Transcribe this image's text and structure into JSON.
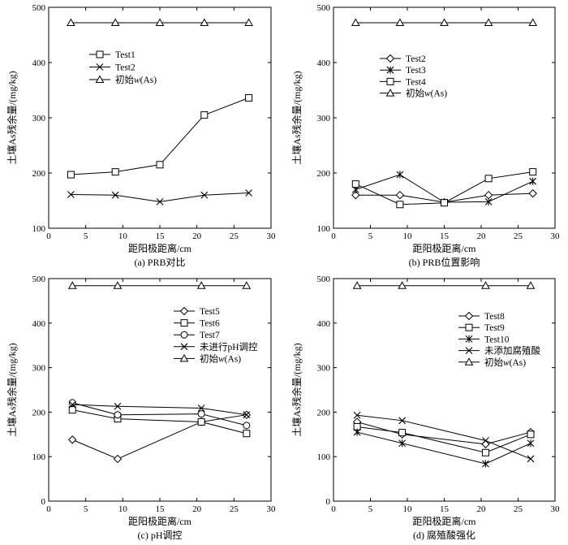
{
  "chart_data": [
    {
      "type": "line",
      "caption": "(a) PRB对比",
      "xlabel": "距阳极距离/cm",
      "ylabel": "土壤As残余量/(mg/kg)",
      "xlim": [
        0,
        30
      ],
      "ylim": [
        100,
        500
      ],
      "xticks": [
        0,
        5,
        10,
        15,
        20,
        25,
        30
      ],
      "yticks": [
        100,
        200,
        300,
        400,
        500
      ],
      "legend": "upper-left",
      "grid": false,
      "series": [
        {
          "name": "Test1",
          "marker": "square",
          "x": [
            3,
            9,
            15,
            21,
            27
          ],
          "y": [
            197,
            202,
            215,
            305,
            336
          ]
        },
        {
          "name": "Test2",
          "marker": "x",
          "x": [
            3,
            9,
            15,
            21,
            27
          ],
          "y": [
            161,
            160,
            148,
            160,
            164
          ]
        },
        {
          "name": "初始w(As)",
          "marker": "triangle",
          "x": [
            3,
            9,
            15,
            21,
            27
          ],
          "y": [
            472,
            472,
            472,
            472,
            472
          ]
        }
      ]
    },
    {
      "type": "line",
      "caption": "(b) PRB位置影响",
      "xlabel": "距阳极距离/cm",
      "ylabel": "土壤As残余量/(mg/kg)",
      "xlim": [
        0,
        30
      ],
      "ylim": [
        100,
        500
      ],
      "xticks": [
        0,
        5,
        10,
        15,
        20,
        25,
        30
      ],
      "yticks": [
        100,
        200,
        300,
        400,
        500
      ],
      "legend": "upper-left",
      "grid": false,
      "series": [
        {
          "name": "Test2",
          "marker": "diamond",
          "x": [
            3,
            9,
            15,
            21,
            27
          ],
          "y": [
            160,
            160,
            147,
            160,
            163
          ]
        },
        {
          "name": "Test3",
          "marker": "asterisk",
          "x": [
            3,
            9,
            15,
            21,
            27
          ],
          "y": [
            170,
            197,
            147,
            148,
            185
          ]
        },
        {
          "name": "Test4",
          "marker": "square",
          "x": [
            3,
            9,
            15,
            21,
            27
          ],
          "y": [
            180,
            143,
            146,
            190,
            202
          ]
        },
        {
          "name": "初始w(As)",
          "marker": "triangle",
          "x": [
            3,
            9,
            15,
            21,
            27
          ],
          "y": [
            472,
            472,
            472,
            472,
            472
          ]
        }
      ]
    },
    {
      "type": "line",
      "caption": "(c) pH调控",
      "xlabel": "距阳极距离/cm",
      "ylabel": "土壤As残余量/(mg/kg)",
      "xlim": [
        0,
        30
      ],
      "ylim": [
        0,
        500
      ],
      "xticks": [
        0,
        5,
        10,
        15,
        20,
        25,
        30
      ],
      "yticks": [
        0,
        100,
        200,
        300,
        400,
        500
      ],
      "legend": "upper-right",
      "grid": false,
      "series": [
        {
          "name": "Test5",
          "marker": "diamond",
          "x": [
            3.2,
            9.3,
            20.6,
            26.7
          ],
          "y": [
            138,
            95,
            178,
            194
          ]
        },
        {
          "name": "Test6",
          "marker": "square",
          "x": [
            3.2,
            9.3,
            20.6,
            26.7
          ],
          "y": [
            205,
            185,
            178,
            152
          ]
        },
        {
          "name": "Test7",
          "marker": "circle",
          "x": [
            3.2,
            9.3,
            20.6,
            26.7
          ],
          "y": [
            221,
            194,
            196,
            170
          ]
        },
        {
          "name": "未进行pH调控",
          "marker": "x",
          "x": [
            3.2,
            9.3,
            20.6,
            26.7
          ],
          "y": [
            217,
            213,
            209,
            194
          ]
        },
        {
          "name": "初始w(As)",
          "marker": "triangle",
          "x": [
            3.2,
            9.3,
            20.6,
            26.7
          ],
          "y": [
            484,
            484,
            484,
            484
          ]
        }
      ]
    },
    {
      "type": "line",
      "caption": "(d) 腐殖酸强化",
      "xlabel": "距阳极距离/cm",
      "ylabel": "土壤As残余量/(mg/kg)",
      "xlim": [
        0,
        30
      ],
      "ylim": [
        0,
        500
      ],
      "xticks": [
        0,
        5,
        10,
        15,
        20,
        25,
        30
      ],
      "yticks": [
        0,
        100,
        200,
        300,
        400,
        500
      ],
      "legend": "upper-right",
      "grid": false,
      "series": [
        {
          "name": "Test8",
          "marker": "diamond",
          "x": [
            3.2,
            9.3,
            20.6,
            26.7
          ],
          "y": [
            178,
            150,
            128,
            155
          ]
        },
        {
          "name": "Test9",
          "marker": "square",
          "x": [
            3.2,
            9.3,
            20.6,
            26.7
          ],
          "y": [
            167,
            154,
            109,
            150
          ]
        },
        {
          "name": "Test10",
          "marker": "asterisk",
          "x": [
            3.2,
            9.3,
            20.6,
            26.7
          ],
          "y": [
            155,
            130,
            84,
            130
          ]
        },
        {
          "name": "未添加腐殖酸",
          "marker": "x",
          "x": [
            3.2,
            9.3,
            20.6,
            26.7
          ],
          "y": [
            193,
            181,
            136,
            95
          ]
        },
        {
          "name": "初始w(As)",
          "marker": "triangle",
          "x": [
            3.2,
            9.3,
            20.6,
            26.7
          ],
          "y": [
            484,
            484,
            484,
            484
          ]
        }
      ]
    }
  ]
}
